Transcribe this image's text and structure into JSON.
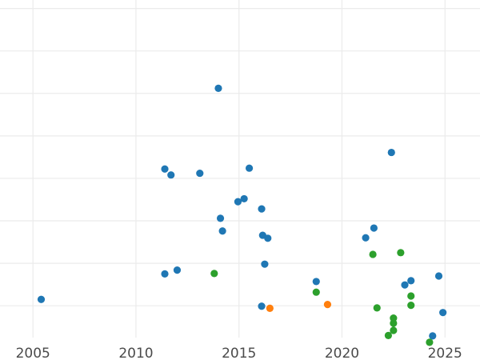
{
  "chart_data": {
    "type": "scatter",
    "title": "",
    "xlabel": "",
    "ylabel": "",
    "xlim": [
      2003.4,
      2026.7
    ],
    "ylim": [
      -0.75,
      7.2
    ],
    "x_ticks": [
      2005,
      2010,
      2015,
      2020,
      2025
    ],
    "x_tick_labels": [
      "2005",
      "2010",
      "2015",
      "2020",
      "2025"
    ],
    "y_gridlines": [
      0,
      1,
      2,
      3,
      4,
      5,
      6,
      7
    ],
    "grid": true,
    "legend": "none",
    "series": [
      {
        "color": "#1f77b4",
        "points": [
          {
            "x": 2005.4,
            "y": 0.15
          },
          {
            "x": 2011.4,
            "y": 0.75
          },
          {
            "x": 2012.0,
            "y": 0.84
          },
          {
            "x": 2011.4,
            "y": 3.22
          },
          {
            "x": 2011.7,
            "y": 3.08
          },
          {
            "x": 2013.1,
            "y": 3.12
          },
          {
            "x": 2014.0,
            "y": 5.12
          },
          {
            "x": 2014.1,
            "y": 2.06
          },
          {
            "x": 2014.2,
            "y": 1.76
          },
          {
            "x": 2014.95,
            "y": 2.45
          },
          {
            "x": 2015.25,
            "y": 2.52
          },
          {
            "x": 2015.5,
            "y": 3.24
          },
          {
            "x": 2016.1,
            "y": 2.28
          },
          {
            "x": 2016.15,
            "y": 1.66
          },
          {
            "x": 2016.4,
            "y": 1.59
          },
          {
            "x": 2016.25,
            "y": 0.98
          },
          {
            "x": 2016.1,
            "y": -0.01
          },
          {
            "x": 2018.75,
            "y": 0.57
          },
          {
            "x": 2021.15,
            "y": 1.6
          },
          {
            "x": 2021.55,
            "y": 1.83
          },
          {
            "x": 2022.4,
            "y": 3.61
          },
          {
            "x": 2023.05,
            "y": 0.49
          },
          {
            "x": 2023.35,
            "y": 0.59
          },
          {
            "x": 2024.7,
            "y": 0.7
          },
          {
            "x": 2024.9,
            "y": -0.16
          },
          {
            "x": 2024.4,
            "y": -0.71
          }
        ]
      },
      {
        "color": "#ff7f0e",
        "points": [
          {
            "x": 2016.5,
            "y": -0.06
          },
          {
            "x": 2019.3,
            "y": 0.03
          }
        ]
      },
      {
        "color": "#2ca02c",
        "points": [
          {
            "x": 2013.8,
            "y": 0.76
          },
          {
            "x": 2018.75,
            "y": 0.32
          },
          {
            "x": 2021.5,
            "y": 1.21
          },
          {
            "x": 2022.85,
            "y": 1.25
          },
          {
            "x": 2021.7,
            "y": -0.05
          },
          {
            "x": 2022.5,
            "y": -0.29
          },
          {
            "x": 2022.5,
            "y": -0.41
          },
          {
            "x": 2022.5,
            "y": -0.58
          },
          {
            "x": 2022.25,
            "y": -0.7
          },
          {
            "x": 2023.35,
            "y": 0.23
          },
          {
            "x": 2023.35,
            "y": 0.01
          },
          {
            "x": 2024.25,
            "y": -0.86
          }
        ]
      }
    ]
  }
}
